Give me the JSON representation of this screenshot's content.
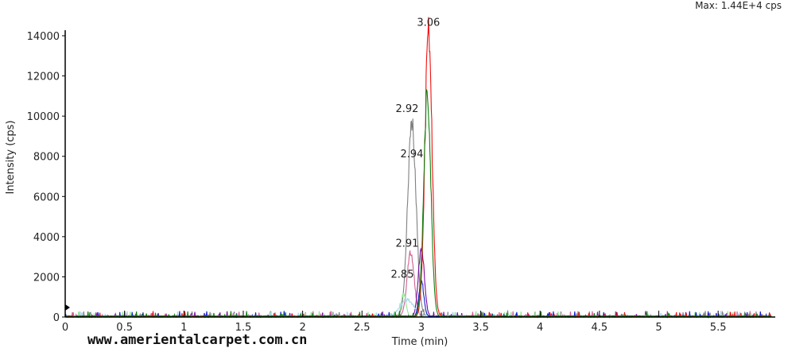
{
  "header": {
    "max_label": "Max: 1.44E+4 cps"
  },
  "watermark": "www.amerientalcarpet.com.cn",
  "chart_data": {
    "type": "line",
    "title": "",
    "xlabel": "Time (min)",
    "ylabel": "Intensity (cps)",
    "xlim": [
      0,
      6
    ],
    "ylim": [
      0,
      14000
    ],
    "x_ticks": [
      "0",
      "0.5",
      "1",
      "1.5",
      "2",
      "2.5",
      "3",
      "3.5",
      "4",
      "4.5",
      "5",
      "5.5"
    ],
    "x_tick_values": [
      0,
      0.5,
      1,
      1.5,
      2,
      2.5,
      3,
      3.5,
      4,
      4.5,
      5,
      5.5
    ],
    "y_ticks": [
      "0",
      "2000",
      "4000",
      "6000",
      "8000",
      "10000",
      "12000",
      "14000"
    ],
    "y_tick_values": [
      0,
      2000,
      4000,
      6000,
      8000,
      10000,
      12000,
      14000
    ],
    "grid": false,
    "series": [
      {
        "color": "#808080",
        "peak_time": 2.92,
        "peak_height": 9800,
        "width": 0.035
      },
      {
        "color": "#d06090",
        "peak_time": 2.91,
        "peak_height": 3200,
        "width": 0.03
      },
      {
        "color": "#7a0aa0",
        "peak_time": 3.0,
        "peak_height": 3400,
        "width": 0.025
      },
      {
        "color": "#90e890",
        "peak_time": 2.85,
        "peak_height": 1100,
        "width": 0.02
      },
      {
        "color": "#a8d8e8",
        "peak_time": 2.88,
        "peak_height": 800,
        "width": 0.06
      },
      {
        "color": "#1020d0",
        "peak_time": 3.0,
        "peak_height": 1800,
        "width": 0.02
      },
      {
        "color": "#f01010",
        "peak_time": 3.06,
        "peak_height": 14300,
        "width": 0.03
      },
      {
        "color": "#108010",
        "peak_time": 3.05,
        "peak_height": 11000,
        "width": 0.03
      }
    ],
    "annotations": [
      {
        "text": "3.06",
        "x": 3.06,
        "y": 14500
      },
      {
        "text": "2.92",
        "x": 2.88,
        "y": 10200
      },
      {
        "text": "2.94",
        "x": 2.92,
        "y": 7950
      },
      {
        "text": "2.91",
        "x": 2.88,
        "y": 3500
      },
      {
        "text": "2.85",
        "x": 2.84,
        "y": 1950
      }
    ]
  }
}
